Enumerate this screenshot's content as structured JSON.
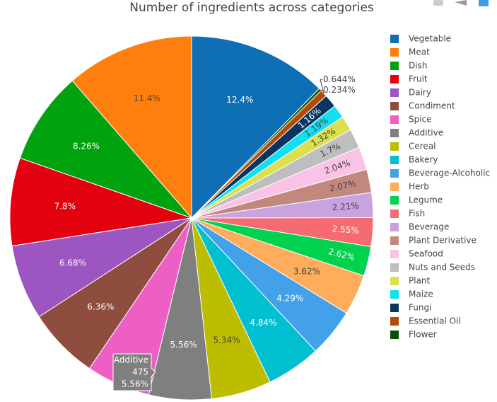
{
  "chart_data": {
    "type": "pie",
    "title": "Number of ingredients across categories",
    "categories": [
      "Vegetable",
      "Meat",
      "Dish",
      "Fruit",
      "Dairy",
      "Condiment",
      "Spice",
      "Additive",
      "Cereal",
      "Bakery",
      "Beverage-Alcoholic",
      "Herb",
      "Legume",
      "Fish",
      "Beverage",
      "Plant Derivative",
      "Seafood",
      "Nuts and Seeds",
      "Plant",
      "Maize",
      "Fungi",
      "Essential Oil",
      "Flower"
    ],
    "values": [
      12.4,
      11.4,
      8.26,
      7.8,
      6.68,
      6.36,
      5.71,
      5.56,
      5.34,
      4.84,
      4.29,
      3.62,
      2.62,
      2.55,
      2.21,
      2.07,
      2.04,
      1.7,
      1.32,
      1.19,
      1.16,
      0.644,
      0.234
    ],
    "value_labels": [
      "12.4%",
      "11.4%",
      "8.26%",
      "7.8%",
      "6.68%",
      "6.36%",
      null,
      "5.56%",
      "5.34%",
      "4.84%",
      "4.29%",
      "3.62%",
      "2.62%",
      "2.55%",
      "2.21%",
      "2.07%",
      "2.04%",
      "1.7%",
      "1.32%",
      "1.19%",
      "1.16%",
      "0.644%",
      "0.234%"
    ],
    "colors": [
      "#0f6fb5",
      "#ff7f0e",
      "#00a30d",
      "#e3000f",
      "#9c55c1",
      "#8f4d3f",
      "#ee5fc6",
      "#7f7f7f",
      "#bcbd00",
      "#00bfd0",
      "#42a1e8",
      "#ffad5c",
      "#00d14e",
      "#f46c72",
      "#c9a2e0",
      "#c2887d",
      "#f9c2e6",
      "#bebebe",
      "#dde04c",
      "#10e0f0",
      "#0a3560",
      "#b34a06",
      "#065106"
    ],
    "legend": "right",
    "hover": {
      "label": "Additive",
      "count": 475,
      "percent": "5.56%"
    }
  }
}
